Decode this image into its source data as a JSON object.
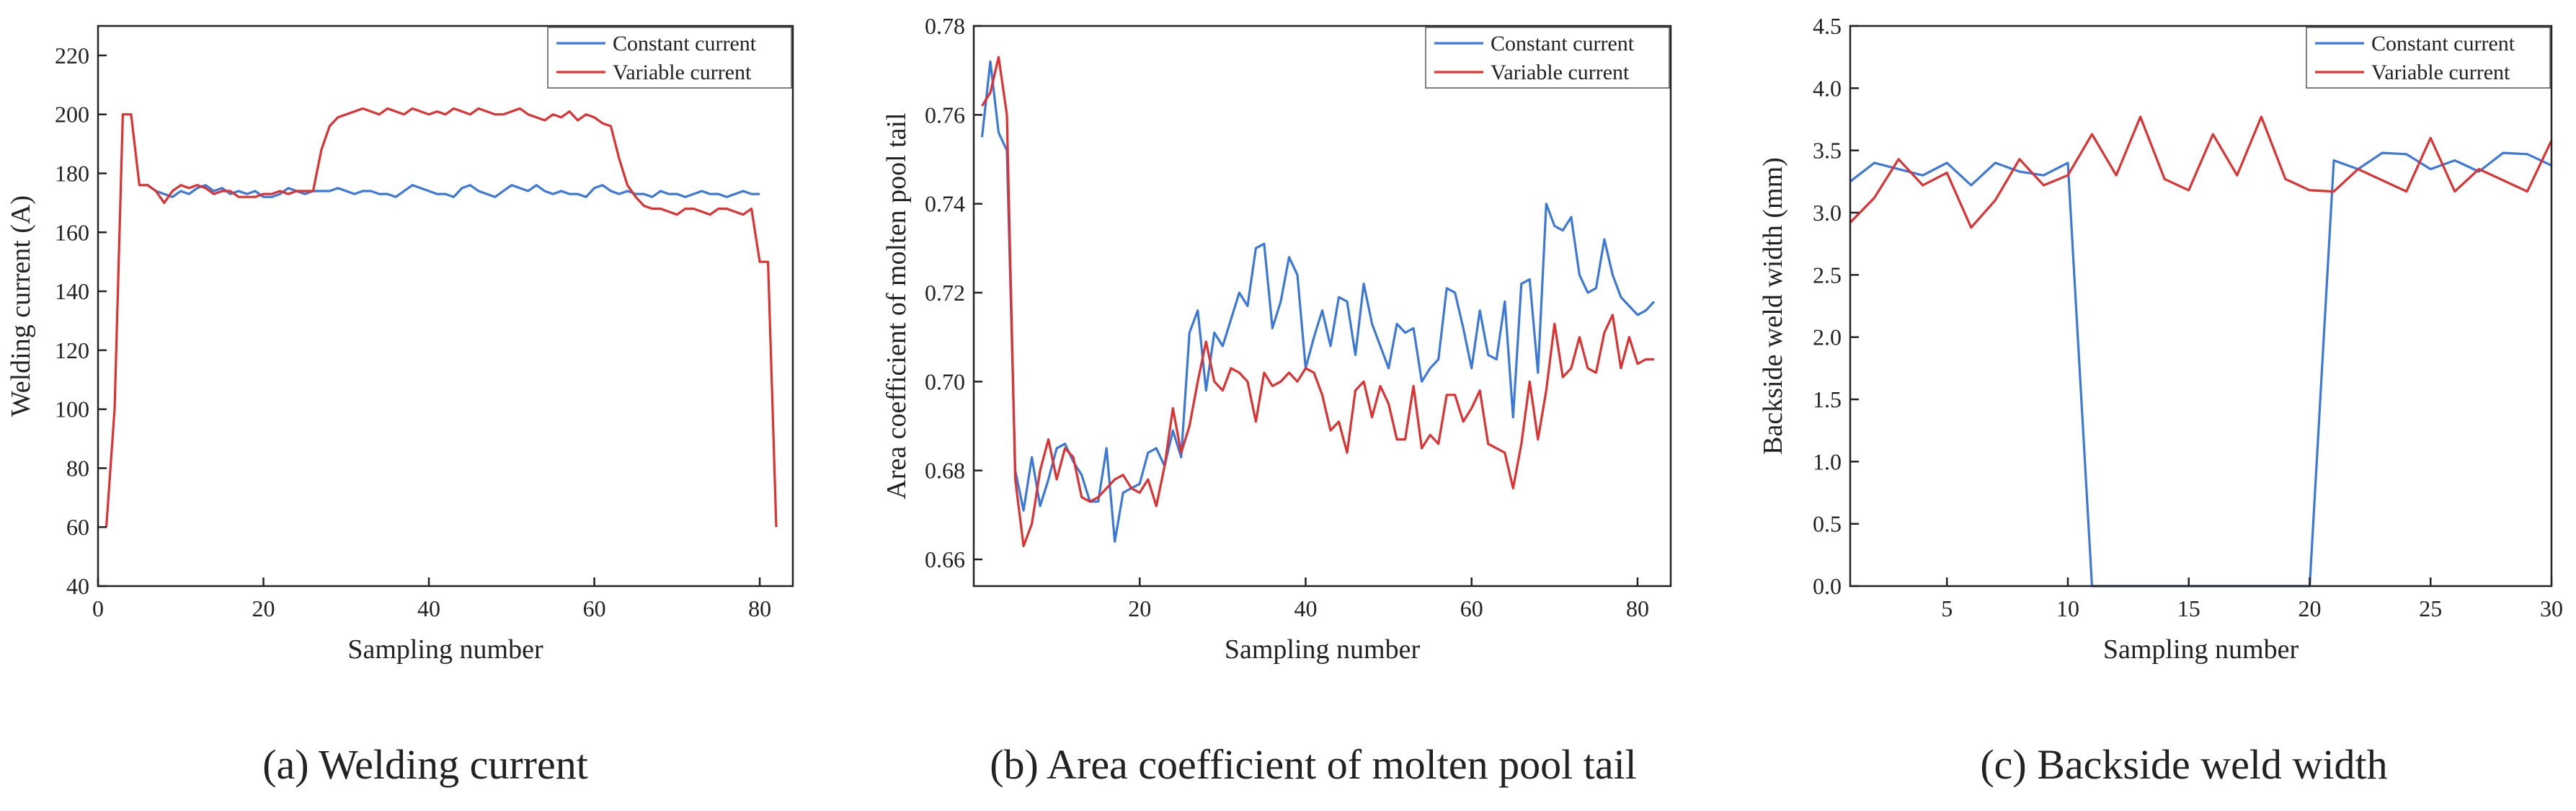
{
  "colors": {
    "constant": "#3a78dc",
    "variable": "#e03030",
    "axis": "#222222"
  },
  "chart_data": [
    {
      "type": "line",
      "caption": "(a) Welding current",
      "xlabel": "Sampling number",
      "ylabel": "Welding current (A)",
      "xlim": [
        0,
        84
      ],
      "ylim": [
        40,
        230
      ],
      "xticks": [
        0,
        20,
        40,
        60,
        80
      ],
      "yticks": [
        40,
        60,
        80,
        100,
        120,
        140,
        160,
        180,
        200,
        220
      ],
      "grid": false,
      "legend": "top-right",
      "series": [
        {
          "name": "Constant current",
          "color": "#3a78dc",
          "x": [
            5,
            6,
            7,
            8,
            9,
            10,
            11,
            12,
            13,
            14,
            15,
            16,
            17,
            18,
            19,
            20,
            21,
            22,
            23,
            24,
            25,
            26,
            27,
            28,
            29,
            30,
            31,
            32,
            33,
            34,
            35,
            36,
            37,
            38,
            39,
            40,
            41,
            42,
            43,
            44,
            45,
            46,
            47,
            48,
            49,
            50,
            51,
            52,
            53,
            54,
            55,
            56,
            57,
            58,
            59,
            60,
            61,
            62,
            63,
            64,
            65,
            66,
            67,
            68,
            69,
            70,
            71,
            72,
            73,
            74,
            75,
            76,
            77,
            78,
            79,
            80
          ],
          "y": [
            176,
            176,
            174,
            173,
            172,
            174,
            173,
            175,
            176,
            174,
            175,
            173,
            174,
            173,
            174,
            172,
            172,
            173,
            175,
            174,
            173,
            174,
            174,
            174,
            175,
            174,
            173,
            174,
            174,
            173,
            173,
            172,
            174,
            176,
            175,
            174,
            173,
            173,
            172,
            175,
            176,
            174,
            173,
            172,
            174,
            176,
            175,
            174,
            176,
            174,
            173,
            174,
            173,
            173,
            172,
            175,
            176,
            174,
            173,
            174,
            173,
            173,
            172,
            174,
            173,
            173,
            172,
            173,
            174,
            173,
            173,
            172,
            173,
            174,
            173,
            173
          ]
        },
        {
          "name": "Variable current",
          "color": "#e03030",
          "x": [
            1,
            2,
            3,
            4,
            5,
            6,
            7,
            8,
            9,
            10,
            11,
            12,
            13,
            14,
            15,
            16,
            17,
            18,
            19,
            20,
            21,
            22,
            23,
            24,
            25,
            26,
            27,
            28,
            29,
            30,
            31,
            32,
            33,
            34,
            35,
            36,
            37,
            38,
            39,
            40,
            41,
            42,
            43,
            44,
            45,
            46,
            47,
            48,
            49,
            50,
            51,
            52,
            53,
            54,
            55,
            56,
            57,
            58,
            59,
            60,
            61,
            62,
            63,
            64,
            65,
            66,
            67,
            68,
            69,
            70,
            71,
            72,
            73,
            74,
            75,
            76,
            77,
            78,
            79,
            80,
            81,
            82
          ],
          "y": [
            60,
            100,
            200,
            200,
            176,
            176,
            174,
            170,
            174,
            176,
            175,
            176,
            175,
            173,
            174,
            174,
            172,
            172,
            172,
            173,
            173,
            174,
            173,
            174,
            174,
            174,
            188,
            196,
            199,
            200,
            201,
            202,
            201,
            200,
            202,
            201,
            200,
            202,
            201,
            200,
            201,
            200,
            202,
            201,
            200,
            202,
            201,
            200,
            200,
            201,
            202,
            200,
            199,
            198,
            200,
            199,
            201,
            198,
            200,
            199,
            197,
            196,
            185,
            176,
            172,
            169,
            168,
            168,
            167,
            166,
            168,
            168,
            167,
            166,
            168,
            168,
            167,
            166,
            168,
            150,
            150,
            60
          ]
        }
      ]
    },
    {
      "type": "line",
      "caption": "(b) Area coefficient of molten pool tail",
      "xlabel": "Sampling number",
      "ylabel": "Area coefficient of molten pool tail",
      "xlim": [
        0,
        84
      ],
      "ylim": [
        0.654,
        0.78
      ],
      "xticks": [
        20,
        40,
        60,
        80
      ],
      "yticks": [
        0.66,
        0.68,
        0.7,
        0.72,
        0.74,
        0.76,
        0.78
      ],
      "grid": false,
      "legend": "top-right",
      "series": [
        {
          "name": "Constant current",
          "color": "#3a78dc",
          "x": [
            1,
            2,
            3,
            4,
            5,
            6,
            7,
            8,
            9,
            10,
            11,
            12,
            13,
            14,
            15,
            16,
            17,
            18,
            19,
            20,
            21,
            22,
            23,
            24,
            25,
            26,
            27,
            28,
            29,
            30,
            31,
            32,
            33,
            34,
            35,
            36,
            37,
            38,
            39,
            40,
            41,
            42,
            43,
            44,
            45,
            46,
            47,
            48,
            49,
            50,
            51,
            52,
            53,
            54,
            55,
            56,
            57,
            58,
            59,
            60,
            61,
            62,
            63,
            64,
            65,
            66,
            67,
            68,
            69,
            70,
            71,
            72,
            73,
            74,
            75,
            76,
            77,
            78,
            79,
            80,
            81,
            82
          ],
          "y": [
            0.755,
            0.772,
            0.756,
            0.752,
            0.68,
            0.671,
            0.683,
            0.672,
            0.678,
            0.685,
            0.686,
            0.682,
            0.679,
            0.673,
            0.673,
            0.685,
            0.664,
            0.675,
            0.676,
            0.677,
            0.684,
            0.685,
            0.681,
            0.689,
            0.683,
            0.711,
            0.716,
            0.698,
            0.711,
            0.708,
            0.714,
            0.72,
            0.717,
            0.73,
            0.731,
            0.712,
            0.718,
            0.728,
            0.724,
            0.703,
            0.71,
            0.716,
            0.708,
            0.719,
            0.718,
            0.706,
            0.722,
            0.713,
            0.708,
            0.703,
            0.713,
            0.711,
            0.712,
            0.7,
            0.703,
            0.705,
            0.721,
            0.72,
            0.712,
            0.703,
            0.716,
            0.706,
            0.705,
            0.718,
            0.692,
            0.722,
            0.723,
            0.702,
            0.74,
            0.735,
            0.734,
            0.737,
            0.724,
            0.72,
            0.721,
            0.732,
            0.724,
            0.719,
            0.717,
            0.715,
            0.716,
            0.718
          ]
        },
        {
          "name": "Variable current",
          "color": "#e03030",
          "x": [
            1,
            2,
            3,
            4,
            5,
            6,
            7,
            8,
            9,
            10,
            11,
            12,
            13,
            14,
            15,
            16,
            17,
            18,
            19,
            20,
            21,
            22,
            23,
            24,
            25,
            26,
            27,
            28,
            29,
            30,
            31,
            32,
            33,
            34,
            35,
            36,
            37,
            38,
            39,
            40,
            41,
            42,
            43,
            44,
            45,
            46,
            47,
            48,
            49,
            50,
            51,
            52,
            53,
            54,
            55,
            56,
            57,
            58,
            59,
            60,
            61,
            62,
            63,
            64,
            65,
            66,
            67,
            68,
            69,
            70,
            71,
            72,
            73,
            74,
            75,
            76,
            77,
            78,
            79,
            80,
            81,
            82
          ],
          "y": [
            0.762,
            0.765,
            0.773,
            0.76,
            0.678,
            0.663,
            0.668,
            0.68,
            0.687,
            0.678,
            0.685,
            0.683,
            0.674,
            0.673,
            0.674,
            0.676,
            0.678,
            0.679,
            0.676,
            0.675,
            0.678,
            0.672,
            0.681,
            0.694,
            0.684,
            0.69,
            0.7,
            0.709,
            0.7,
            0.698,
            0.703,
            0.702,
            0.7,
            0.691,
            0.702,
            0.699,
            0.7,
            0.702,
            0.7,
            0.703,
            0.702,
            0.697,
            0.689,
            0.691,
            0.684,
            0.698,
            0.7,
            0.692,
            0.699,
            0.695,
            0.687,
            0.687,
            0.699,
            0.685,
            0.688,
            0.686,
            0.697,
            0.697,
            0.691,
            0.694,
            0.698,
            0.686,
            0.685,
            0.684,
            0.676,
            0.686,
            0.7,
            0.687,
            0.698,
            0.713,
            0.701,
            0.703,
            0.71,
            0.703,
            0.702,
            0.711,
            0.715,
            0.703,
            0.71,
            0.704,
            0.705,
            0.705
          ]
        }
      ]
    },
    {
      "type": "line",
      "caption": "(c) Backside weld width",
      "xlabel": "Sampling number",
      "ylabel": "Backside weld width (mm)",
      "xlim": [
        1,
        30
      ],
      "ylim": [
        0,
        4.5
      ],
      "xticks": [
        5,
        10,
        15,
        20,
        25,
        30
      ],
      "yticks": [
        0.0,
        0.5,
        1.0,
        1.5,
        2.0,
        2.5,
        3.0,
        3.5,
        4.0,
        4.5
      ],
      "grid": false,
      "legend": "top-right",
      "series": [
        {
          "name": "Constant current",
          "color": "#3a78dc",
          "x": [
            1,
            2,
            3,
            4,
            5,
            6,
            7,
            8,
            9,
            10,
            11,
            12,
            13,
            14,
            15,
            16,
            17,
            18,
            19,
            20,
            21,
            22,
            23,
            24,
            25,
            26,
            27,
            28,
            29,
            30
          ],
          "y": [
            3.25,
            3.4,
            3.35,
            3.3,
            3.4,
            3.22,
            3.4,
            3.33,
            3.3,
            3.4,
            0,
            0,
            0,
            0,
            0,
            0,
            0,
            0,
            0,
            0,
            3.42,
            3.35,
            3.48,
            3.47,
            3.35,
            3.42,
            3.33,
            3.48,
            3.47,
            3.38
          ]
        },
        {
          "name": "Variable current",
          "color": "#e03030",
          "x": [
            1,
            2,
            3,
            4,
            5,
            6,
            7,
            8,
            9,
            10,
            11,
            12,
            13,
            14,
            15,
            16,
            17,
            18,
            19,
            20,
            21,
            22,
            23,
            24,
            25,
            26,
            27,
            28,
            29,
            30
          ],
          "y": [
            2.92,
            3.12,
            3.43,
            3.22,
            3.32,
            2.88,
            3.1,
            3.43,
            3.22,
            3.3,
            3.63,
            3.3,
            3.77,
            3.27,
            3.18,
            3.63,
            3.3,
            3.77,
            3.27,
            3.18,
            3.17,
            3.35,
            3.26,
            3.17,
            3.6,
            3.17,
            3.35,
            3.26,
            3.17,
            3.58
          ]
        }
      ]
    }
  ]
}
